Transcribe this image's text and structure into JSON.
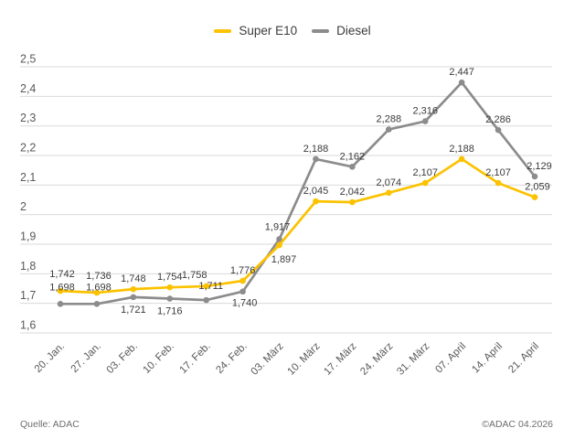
{
  "legend": [
    {
      "label": "Super E10",
      "color": "#fcc200"
    },
    {
      "label": "Diesel",
      "color": "#8c8c8c"
    }
  ],
  "footer": {
    "source": "Quelle: ADAC",
    "copyright": "©ADAC 04.2026"
  },
  "chart_data": {
    "type": "line",
    "title": "",
    "xlabel": "",
    "ylabel": "",
    "categories": [
      "20. Jan.",
      "27. Jan.",
      "03. Feb.",
      "10. Feb.",
      "17. Feb.",
      "24. Feb.",
      "03. März",
      "10. März",
      "17. März",
      "24. März",
      "31. März",
      "07. April",
      "14. April",
      "21. April"
    ],
    "series": [
      {
        "name": "Super E10",
        "color": "#fcc200",
        "values": [
          1.742,
          1.736,
          1.748,
          1.754,
          1.758,
          1.776,
          1.897,
          2.045,
          2.042,
          2.074,
          2.107,
          2.188,
          2.107,
          2.059
        ]
      },
      {
        "name": "Diesel",
        "color": "#8c8c8c",
        "values": [
          1.698,
          1.698,
          1.721,
          1.716,
          1.711,
          1.74,
          1.917,
          2.188,
          2.162,
          2.288,
          2.316,
          2.447,
          2.286,
          2.129
        ]
      }
    ],
    "ylim": [
      1.6,
      2.5
    ],
    "ytick_labels": [
      "1,6",
      "1,7",
      "1,8",
      "1,9",
      "2",
      "2,1",
      "2,2",
      "2,3",
      "2,4",
      "2,5"
    ],
    "grid": true,
    "legend_position": "top-center",
    "decimal_separator": ",",
    "value_labels": true,
    "colors": {
      "gridline": "#dadada",
      "tick_text": "#595959",
      "value_label_text": "#3a3a3a"
    }
  }
}
